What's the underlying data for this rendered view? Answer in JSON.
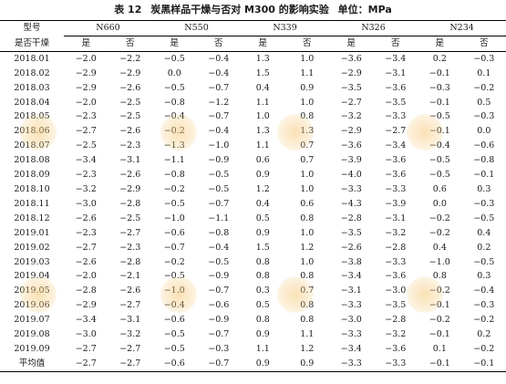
{
  "title": {
    "number": "表 12",
    "text": "炭黑样品干燥与否对 M300 的影响实验",
    "unit": "单位：MPa"
  },
  "columns": {
    "type_label": "型号",
    "groups": [
      "N660",
      "N550",
      "N339",
      "N326",
      "N234"
    ]
  },
  "subheader": {
    "label": "是否干燥",
    "yes": "是",
    "no": "否"
  },
  "rows": [
    {
      "label": "2018.01",
      "v": [
        "−2.0",
        "−2.2",
        "−0.5",
        "−0.4",
        "1.3",
        "1.0",
        "−3.6",
        "−3.4",
        "0.2",
        "−0.3"
      ]
    },
    {
      "label": "2018.02",
      "v": [
        "−2.9",
        "−2.9",
        "0.0",
        "−0.4",
        "1.5",
        "1.1",
        "−2.9",
        "−3.1",
        "−0.1",
        "0.1"
      ]
    },
    {
      "label": "2018.03",
      "v": [
        "−2.9",
        "−2.6",
        "−0.5",
        "−0.7",
        "0.4",
        "0.9",
        "−3.5",
        "−3.6",
        "−0.3",
        "−0.2"
      ]
    },
    {
      "label": "2018.04",
      "v": [
        "−2.0",
        "−2.5",
        "−0.8",
        "−1.2",
        "1.1",
        "1.0",
        "−2.7",
        "−3.5",
        "−0.1",
        "0.5"
      ]
    },
    {
      "label": "2018.05",
      "v": [
        "−2.3",
        "−2.5",
        "−0.4",
        "−0.7",
        "1.0",
        "0.8",
        "−3.2",
        "−3.3",
        "−0.5",
        "−0.3"
      ]
    },
    {
      "label": "2018.06",
      "v": [
        "−2.7",
        "−2.6",
        "−0.2",
        "−0.4",
        "1.3",
        "1.3",
        "−2.9",
        "−2.7",
        "−0.1",
        "0.0"
      ]
    },
    {
      "label": "2018.07",
      "v": [
        "−2.5",
        "−2.3",
        "−1.3",
        "−1.0",
        "1.1",
        "0.7",
        "−3.6",
        "−3.4",
        "−0.4",
        "−0.6"
      ]
    },
    {
      "label": "2018.08",
      "v": [
        "−3.4",
        "−3.1",
        "−1.1",
        "−0.9",
        "0.6",
        "0.7",
        "−3.9",
        "−3.6",
        "−0.5",
        "−0.8"
      ]
    },
    {
      "label": "2018.09",
      "v": [
        "−2.3",
        "−2.6",
        "−0.8",
        "−0.5",
        "0.9",
        "1.0",
        "−4.0",
        "−3.6",
        "−0.5",
        "−0.1"
      ]
    },
    {
      "label": "2018.10",
      "v": [
        "−3.2",
        "−2.9",
        "−0.2",
        "−0.5",
        "1.2",
        "1.0",
        "−3.3",
        "−3.3",
        "0.6",
        "0.3"
      ]
    },
    {
      "label": "2018.11",
      "v": [
        "−3.0",
        "−2.8",
        "−0.5",
        "−0.7",
        "0.4",
        "0.6",
        "−4.3",
        "−3.9",
        "0.0",
        "−0.3"
      ]
    },
    {
      "label": "2018.12",
      "v": [
        "−2.6",
        "−2.5",
        "−1.0",
        "−1.1",
        "0.5",
        "0.8",
        "−2.8",
        "−3.1",
        "−0.2",
        "−0.5"
      ]
    },
    {
      "label": "2019.01",
      "v": [
        "−2.3",
        "−2.7",
        "−0.6",
        "−0.8",
        "0.9",
        "1.0",
        "−3.5",
        "−3.2",
        "−0.2",
        "0.4"
      ]
    },
    {
      "label": "2019.02",
      "v": [
        "−2.7",
        "−2.3",
        "−0.7",
        "−0.4",
        "1.5",
        "1.2",
        "−2.6",
        "−2.8",
        "0.4",
        "0.2"
      ]
    },
    {
      "label": "2019.03",
      "v": [
        "−2.6",
        "−2.8",
        "−0.2",
        "−0.5",
        "0.8",
        "1.0",
        "−3.8",
        "−3.3",
        "−1.0",
        "−0.5"
      ]
    },
    {
      "label": "2019.04",
      "v": [
        "−2.0",
        "−2.1",
        "−0.5",
        "−0.9",
        "0.8",
        "0.8",
        "−3.4",
        "−3.6",
        "0.8",
        "0.3"
      ]
    },
    {
      "label": "2019.05",
      "v": [
        "−2.8",
        "−2.6",
        "−1.0",
        "−0.7",
        "0.3",
        "0.7",
        "−3.1",
        "−3.0",
        "−0.2",
        "−0.4"
      ]
    },
    {
      "label": "2019.06",
      "v": [
        "−2.9",
        "−2.7",
        "−0.4",
        "−0.6",
        "0.5",
        "0.8",
        "−3.3",
        "−3.5",
        "−0.1",
        "−0.3"
      ]
    },
    {
      "label": "2019.07",
      "v": [
        "−3.4",
        "−3.1",
        "−0.6",
        "−0.9",
        "0.8",
        "0.8",
        "−3.0",
        "−2.8",
        "−0.2",
        "−0.2"
      ]
    },
    {
      "label": "2019.08",
      "v": [
        "−3.0",
        "−3.2",
        "−0.5",
        "−0.7",
        "0.9",
        "1.1",
        "−3.3",
        "−3.2",
        "−0.1",
        "0.2"
      ]
    },
    {
      "label": "2019.09",
      "v": [
        "−2.7",
        "−2.7",
        "−0.5",
        "−0.3",
        "1.1",
        "1.2",
        "−3.4",
        "−3.6",
        "0.1",
        "−0.2"
      ]
    },
    {
      "label": "平均值",
      "v": [
        "−2.7",
        "−2.7",
        "−0.6",
        "−0.7",
        "0.9",
        "0.9",
        "−3.3",
        "−3.3",
        "−0.1",
        "−0.1"
      ]
    }
  ]
}
